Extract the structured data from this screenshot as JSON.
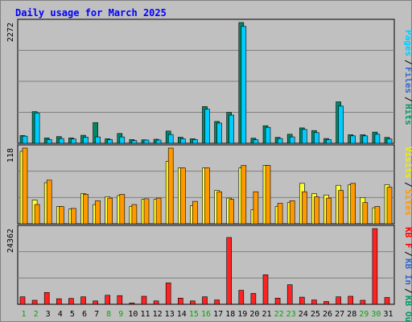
{
  "chart_data": {
    "type": "bar",
    "title": "Daily usage for March 2025",
    "categories": [
      "1",
      "2",
      "3",
      "4",
      "5",
      "6",
      "7",
      "8",
      "9",
      "10",
      "11",
      "12",
      "13",
      "14",
      "15",
      "16",
      "17",
      "18",
      "19",
      "20",
      "21",
      "22",
      "23",
      "24",
      "25",
      "26",
      "27",
      "28",
      "29",
      "30",
      "31"
    ],
    "weekend_days": [
      "1",
      "2",
      "8",
      "9",
      "15",
      "16",
      "22",
      "23",
      "29",
      "30"
    ],
    "panels": [
      {
        "id": "hits-panel",
        "ymax_label": "2272",
        "ymax": 2272,
        "side_labels": [
          {
            "text": "Pages",
            "color": "#00ccff"
          },
          {
            "text": "Files",
            "color": "#3366cc"
          },
          {
            "text": "Hits",
            "color": "#009966"
          }
        ],
        "series": [
          {
            "name": "Hits",
            "color": "#008866",
            "values": [
              145,
              595,
              100,
              125,
              100,
              150,
              390,
              85,
              185,
              70,
              65,
              75,
              230,
              115,
              85,
              690,
              410,
              580,
              2272,
              95,
              330,
              110,
              170,
              290,
              240,
              90,
              780,
              160,
              160,
              210,
              110
            ]
          },
          {
            "name": "Files",
            "color": "#00ccff",
            "values": [
              135,
              570,
              70,
              90,
              80,
              115,
              120,
              70,
              120,
              50,
              60,
              60,
              165,
              85,
              70,
              640,
              380,
              530,
              2200,
              65,
              300,
              90,
              120,
              260,
              200,
              70,
              700,
              140,
              140,
              170,
              80
            ]
          },
          {
            "name": "Pages",
            "color": "#00ccff",
            "values": []
          }
        ]
      },
      {
        "id": "visits-panel",
        "ymax_label": "118",
        "ymax": 118,
        "side_labels": [
          {
            "text": "Visits",
            "color": "#eeee00"
          },
          {
            "text": "Sites",
            "color": "#ff9900"
          }
        ],
        "series": [
          {
            "name": "Visits",
            "color": "#ffff33",
            "values": [
              113,
              37,
              64,
              27,
              23,
              47,
              30,
              42,
              44,
              27,
              38,
              38,
              97,
              87,
              28,
              87,
              52,
              40,
              87,
              22,
              91,
              27,
              33,
              63,
              47,
              45,
              60,
              61,
              41,
              25,
              61
            ]
          },
          {
            "name": "Sites",
            "color": "#ff9900",
            "values": [
              118,
              30,
              68,
              27,
              24,
              46,
              36,
              40,
              46,
              30,
              39,
              40,
              118,
              87,
              35,
              87,
              50,
              38,
              91,
              50,
              91,
              32,
              36,
              50,
              42,
              40,
              52,
              63,
              33,
              27,
              57
            ]
          }
        ]
      },
      {
        "id": "kbytes-panel",
        "ymax_label": "24362",
        "ymax": 24362,
        "side_labels": [
          {
            "text": "KB F",
            "color": "#ff0000"
          },
          {
            "text": "KB In",
            "color": "#3366cc"
          },
          {
            "text": "KB Out",
            "color": "#009966"
          }
        ],
        "series": [
          {
            "name": "KB F",
            "color": "#ff2222",
            "values": [
              2400,
              1300,
              3800,
              1800,
              1900,
              2400,
              1100,
              2900,
              2800,
              450,
              2600,
              1100,
              6900,
              2000,
              1100,
              2400,
              1400,
              21500,
              4500,
              3500,
              9500,
              2000,
              6300,
              2300,
              1400,
              900,
              2400,
              2600,
              1300,
              24362,
              2200
            ]
          }
        ]
      }
    ]
  }
}
